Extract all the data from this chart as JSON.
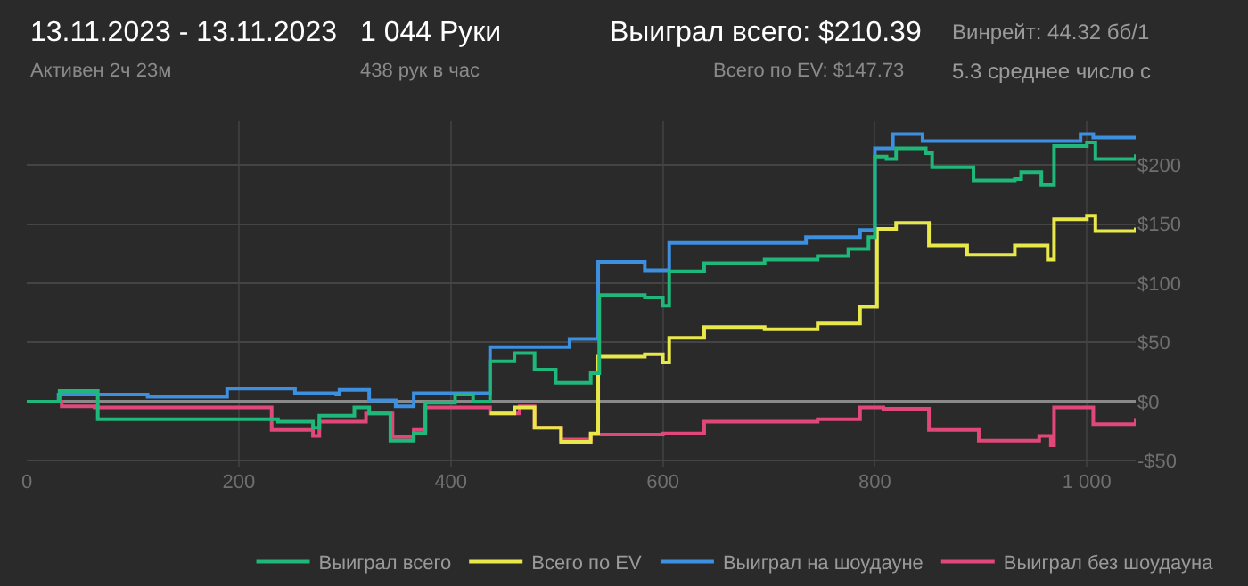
{
  "chart_data": {
    "type": "step",
    "annotations": [
      "13.11.2023 - 13.11.2023",
      "Активен 2ч 23м",
      "1 044 Руки",
      "438 рук в час",
      "Выиграл всего: $210.39",
      "Всего по EV: $147.73",
      "Винрейт: 44.32 бб/1",
      "5.3 среднее число с"
    ],
    "series": [
      {
        "name": "Выиграл всего",
        "color": "#1fb87a",
        "x": [
          0,
          31,
          67,
          231,
          237,
          270,
          276,
          309,
          323,
          343,
          365,
          376,
          404,
          421,
          437,
          460,
          479,
          499,
          532,
          540,
          583,
          600,
          606,
          639,
          696,
          746,
          775,
          794,
          800,
          811,
          820,
          848,
          854,
          893,
          932,
          938,
          957,
          969,
          1000,
          1008,
          1046
        ],
        "values": [
          0,
          9,
          -15,
          -15,
          -17,
          -22,
          -12,
          -5,
          -10,
          -33,
          -27,
          -1,
          6,
          0,
          34,
          41,
          27,
          16,
          24,
          90,
          88,
          81,
          110,
          117,
          120,
          123,
          129,
          139,
          207,
          205,
          214,
          210,
          198,
          187,
          188,
          194,
          183,
          216,
          219,
          205,
          209
        ]
      },
      {
        "name": "Всего по EV",
        "color": "#e8e84a",
        "x": [
          437,
          460,
          479,
          504,
          532,
          539,
          583,
          600,
          606,
          639,
          696,
          746,
          786,
          802,
          820,
          851,
          887,
          932,
          963,
          969,
          1000,
          1008,
          1046
        ],
        "values": [
          -10,
          -5,
          -22,
          -34,
          -27,
          38,
          40,
          33,
          54,
          63,
          61,
          66,
          80,
          146,
          151,
          132,
          124,
          132,
          120,
          154,
          157,
          144,
          147
        ]
      },
      {
        "name": "Выиграл на шоудауне",
        "color": "#3d8fe0",
        "x": [
          0,
          30,
          114,
          189,
          253,
          292,
          295,
          323,
          348,
          365,
          437,
          512,
          539,
          583,
          606,
          735,
          786,
          800,
          817,
          845,
          994,
          1006,
          1046
        ],
        "values": [
          0,
          6,
          4,
          11,
          7,
          6,
          10,
          1,
          -4,
          7,
          46,
          53,
          118,
          111,
          134,
          139,
          145,
          214,
          226,
          220,
          226,
          223,
          223
        ]
      },
      {
        "name": "Выиграл без шоудауна",
        "color": "#e0487a",
        "x": [
          0,
          33,
          64,
          231,
          270,
          276,
          320,
          345,
          365,
          376,
          437,
          465,
          479,
          504,
          532,
          600,
          639,
          746,
          786,
          808,
          851,
          898,
          955,
          966,
          969,
          1006,
          1046
        ],
        "values": [
          0,
          -4,
          -5,
          -24,
          -29,
          -17,
          -10,
          -30,
          -24,
          -5,
          -10,
          -4,
          -22,
          -32,
          -28,
          -27,
          -17,
          -15,
          -5,
          -6,
          -24,
          -33,
          -29,
          -37,
          -5,
          -19,
          -14
        ]
      }
    ],
    "xlim": [
      0,
      1046
    ],
    "xticks": [
      0,
      200,
      400,
      600,
      800,
      {
        "value": 1000,
        "label": "1 000"
      }
    ],
    "ylim": [
      -55,
      237
    ],
    "yticks": [
      {
        "value": -50,
        "label": "-$50"
      },
      {
        "value": 0,
        "label": "$0"
      },
      {
        "value": 50,
        "label": "$50"
      },
      {
        "value": 100,
        "label": "$100"
      },
      {
        "value": 150,
        "label": "$150"
      },
      {
        "value": 200,
        "label": "$200"
      }
    ],
    "grid": true,
    "legend": "bottom right"
  }
}
